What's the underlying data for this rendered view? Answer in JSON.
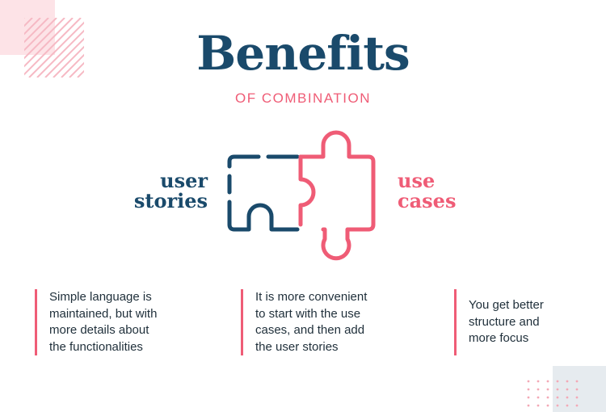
{
  "title": "Benefits",
  "subtitle": "OF COMBINATION",
  "left_label": {
    "line1": "user",
    "line2": "stories"
  },
  "right_label": {
    "line1": "use",
    "line2": "cases"
  },
  "benefits": [
    {
      "text": "Simple language is\nmaintained, but with\nmore details about\nthe functionalities"
    },
    {
      "text": "It is more convenient\nto start with the use\ncases, and then add\nthe user stories"
    },
    {
      "text": "You get better\nstructure and\nmore focus"
    }
  ],
  "colors": {
    "navy": "#1a4a6b",
    "coral": "#ef5c76",
    "pale_pink": "#fde3e7",
    "pale_grey": "#e6ebef"
  },
  "icons": [
    "puzzle-pieces-illustration"
  ]
}
